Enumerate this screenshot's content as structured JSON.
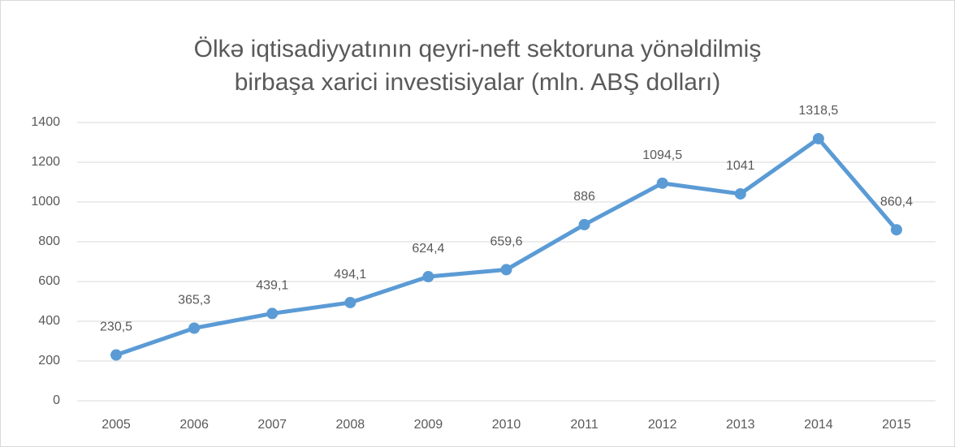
{
  "chart_data": {
    "type": "line",
    "title": [
      "Ölkə iqtisadiyyatının qeyri-neft sektoruna yönəldilmiş",
      "birbaşa xarici investisiyalar (mln. ABŞ dolları)"
    ],
    "categories": [
      "2005",
      "2006",
      "2007",
      "2008",
      "2009",
      "2010",
      "2011",
      "2012",
      "2013",
      "2014",
      "2015"
    ],
    "series": [
      {
        "color": "#5b9bd5",
        "values": [
          230.5,
          365.3,
          439.1,
          494.1,
          624.4,
          659.6,
          886,
          1094.5,
          1041,
          1318.5,
          860.4
        ],
        "value_labels": [
          "230,5",
          "365,3",
          "439,1",
          "494,1",
          "624,4",
          "659,6",
          "886",
          "1094,5",
          "1041",
          "1318,5",
          "860,4"
        ]
      }
    ],
    "ylim": [
      0,
      1400
    ],
    "yticks": [
      0,
      200,
      400,
      600,
      800,
      1000,
      1200,
      1400
    ],
    "grid": true
  }
}
